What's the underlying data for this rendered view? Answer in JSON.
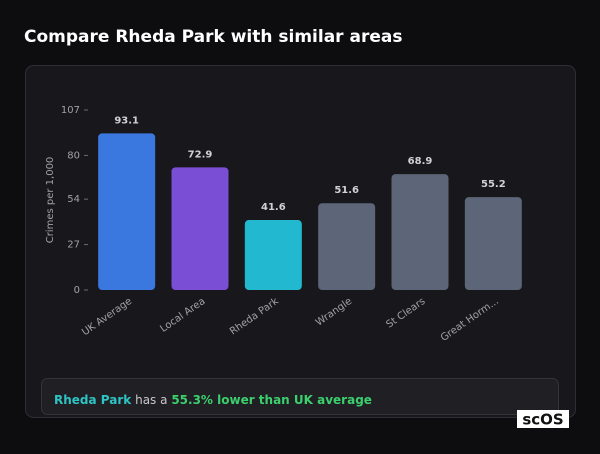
{
  "header": {
    "title": "Compare Rheda Park with similar areas"
  },
  "chart_data": {
    "type": "bar",
    "y_label": "Crimes per 1,000",
    "categories": [
      "UK Average",
      "Local Area",
      "Rheda Park",
      "Wrangle",
      "St Clears",
      "Great Horm..."
    ],
    "values": [
      93.1,
      72.9,
      41.6,
      51.6,
      68.9,
      55.2
    ],
    "colors": [
      "#3a77de",
      "#7a4fd6",
      "#22b9d0",
      "#5c6678",
      "#5c6678",
      "#5c6678"
    ],
    "ylim": [
      0,
      107
    ],
    "yticks": [
      0,
      27,
      54,
      80,
      107
    ],
    "grid": false
  },
  "summary": {
    "place": "Rheda Park",
    "text": "has a",
    "comparison": "55.3% lower than UK average"
  },
  "logo": {
    "text": "scOS"
  }
}
